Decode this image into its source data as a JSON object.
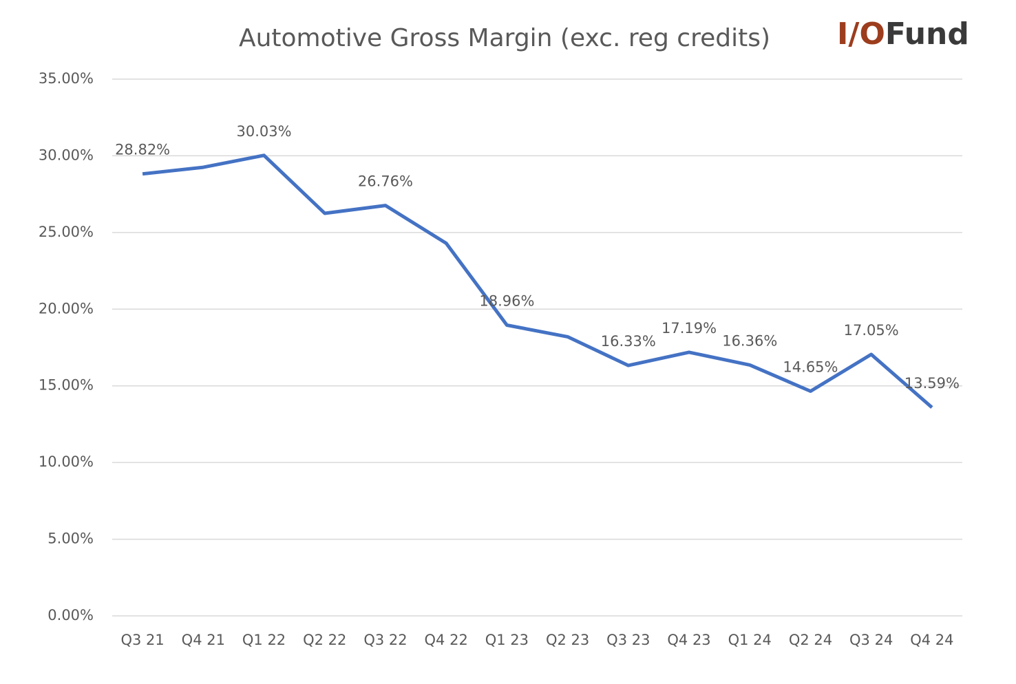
{
  "logo_text": [
    "I/O",
    "Fund"
  ],
  "chart_data": {
    "type": "line",
    "title": "Automotive Gross Margin (exc. reg credits)",
    "categories": [
      "Q3 21",
      "Q4 21",
      "Q1 22",
      "Q2 22",
      "Q3 22",
      "Q4 22",
      "Q1 23",
      "Q2 23",
      "Q3 23",
      "Q4 23",
      "Q1 24",
      "Q2 24",
      "Q3 24",
      "Q4 24"
    ],
    "values": [
      28.82,
      29.25,
      30.03,
      26.25,
      26.76,
      24.3,
      18.96,
      18.2,
      16.33,
      17.19,
      16.36,
      14.65,
      17.05,
      13.59
    ],
    "value_labels": [
      "28.82%",
      null,
      "30.03%",
      null,
      "26.76%",
      null,
      "18.96%",
      null,
      "16.33%",
      "17.19%",
      "16.36%",
      "14.65%",
      "17.05%",
      "13.59%"
    ],
    "color": "#4472c4",
    "ylim": [
      0,
      35
    ],
    "yticks": [
      {
        "value": 0,
        "label": "0.00%"
      },
      {
        "value": 5,
        "label": "5.00%"
      },
      {
        "value": 10,
        "label": "10.00%"
      },
      {
        "value": 15,
        "label": "15.00%"
      },
      {
        "value": 20,
        "label": "20.00%"
      },
      {
        "value": 25,
        "label": "25.00%"
      },
      {
        "value": 30,
        "label": "30.00%"
      },
      {
        "value": 35,
        "label": "35.00%"
      }
    ],
    "grid": true
  }
}
